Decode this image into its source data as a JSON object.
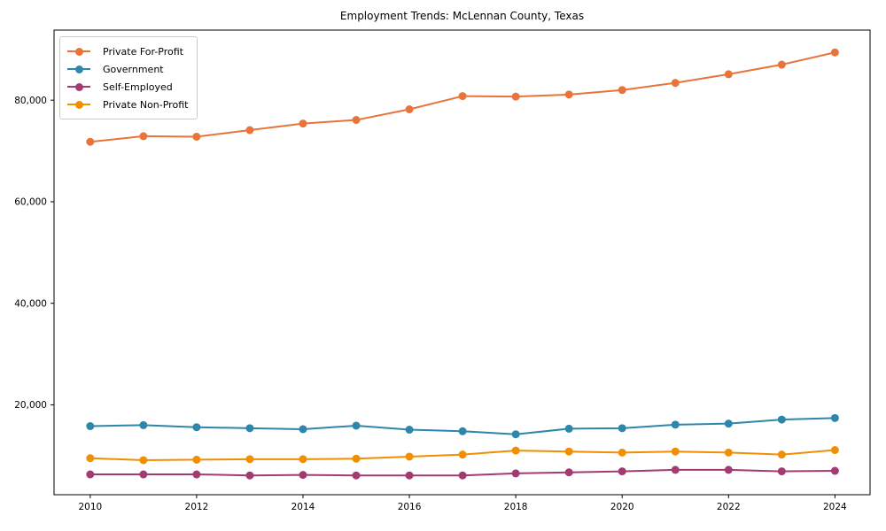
{
  "figure": {
    "background": "#ffffff",
    "axis_color": "#000000",
    "tick_label_color": "#000000",
    "legend": {
      "border_color": "#cccccc",
      "background": "#ffffff",
      "position": "upper left"
    }
  },
  "chart_data": {
    "type": "line",
    "title": "Employment Trends: McLennan County, Texas",
    "xlabel": "",
    "ylabel": "",
    "grid": false,
    "legend_position": "upper left",
    "x": [
      2010,
      2011,
      2012,
      2013,
      2014,
      2015,
      2016,
      2017,
      2018,
      2019,
      2020,
      2021,
      2022,
      2023,
      2024
    ],
    "series": [
      {
        "name": "Private For-Profit",
        "color": "#E8743B",
        "values": [
          71800,
          72900,
          72800,
          74100,
          75400,
          76100,
          78200,
          80800,
          80700,
          81100,
          82000,
          83400,
          85100,
          87000,
          89400
        ]
      },
      {
        "name": "Government",
        "color": "#2E86AB",
        "values": [
          15800,
          16000,
          15600,
          15400,
          15200,
          15900,
          15100,
          14800,
          14200,
          15300,
          15400,
          16100,
          16300,
          17100,
          17400
        ]
      },
      {
        "name": "Self-Employed",
        "color": "#A23B72",
        "values": [
          6300,
          6300,
          6300,
          6100,
          6200,
          6100,
          6100,
          6100,
          6500,
          6700,
          6900,
          7200,
          7200,
          6900,
          7000
        ]
      },
      {
        "name": "Private Non-Profit",
        "color": "#F18F01",
        "values": [
          9500,
          9100,
          9200,
          9300,
          9300,
          9400,
          9800,
          10200,
          11000,
          10800,
          10600,
          10800,
          10600,
          10200,
          11100
        ]
      }
    ],
    "xticks": [
      {
        "v": 2010,
        "label": "2010"
      },
      {
        "v": 2012,
        "label": "2012"
      },
      {
        "v": 2014,
        "label": "2014"
      },
      {
        "v": 2016,
        "label": "2016"
      },
      {
        "v": 2018,
        "label": "2018"
      },
      {
        "v": 2020,
        "label": "2020"
      },
      {
        "v": 2022,
        "label": "2022"
      },
      {
        "v": 2024,
        "label": "2024"
      }
    ],
    "yticks": [
      {
        "v": 20000,
        "label": "20,000"
      },
      {
        "v": 40000,
        "label": "40,000"
      },
      {
        "v": 60000,
        "label": "60,000"
      },
      {
        "v": 80000,
        "label": "80,000"
      }
    ],
    "xlim": [
      2009.32,
      2024.66
    ],
    "ylim": [
      2300,
      93800
    ]
  }
}
